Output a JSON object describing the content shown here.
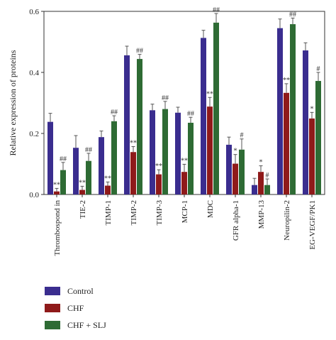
{
  "chart_data": {
    "type": "bar",
    "title": "",
    "xlabel": "",
    "ylabel": "Relative expression of proteins",
    "ylim": [
      0,
      0.6
    ],
    "yticks": [
      "0.0",
      "0.2",
      "0.4",
      "0.6"
    ],
    "categories": [
      "Thrombospond in",
      "TIE-2",
      "TIMP-1",
      "TIMP-2",
      "TIMP-3",
      "MCP-1",
      "MDC",
      "GFR alpha-1",
      "MMP-13",
      "Neuropilin-2",
      "EG-VEGF/PK1"
    ],
    "series": [
      {
        "name": "Control",
        "color": "#3a2d8f",
        "values": [
          0.238,
          0.153,
          0.188,
          0.456,
          0.276,
          0.268,
          0.513,
          0.163,
          0.031,
          0.545,
          0.472
        ],
        "errors": [
          0.028,
          0.04,
          0.02,
          0.03,
          0.02,
          0.018,
          0.025,
          0.025,
          0.022,
          0.03,
          0.025
        ]
      },
      {
        "name": "CHF",
        "color": "#8f1a1a",
        "values": [
          0.01,
          0.015,
          0.029,
          0.139,
          0.066,
          0.074,
          0.288,
          0.101,
          0.074,
          0.333,
          0.249
        ],
        "errors": [
          0.01,
          0.012,
          0.012,
          0.018,
          0.015,
          0.025,
          0.03,
          0.03,
          0.02,
          0.03,
          0.02
        ],
        "significance": [
          "**",
          "**",
          "**",
          "**",
          "**",
          "**",
          "**",
          "*",
          "*",
          "**",
          "*"
        ]
      },
      {
        "name": "CHF + SLJ",
        "color": "#2e6b34",
        "values": [
          0.08,
          0.11,
          0.24,
          0.444,
          0.28,
          0.235,
          0.563,
          0.147,
          0.031,
          0.558,
          0.372
        ],
        "errors": [
          0.025,
          0.025,
          0.018,
          0.015,
          0.025,
          0.018,
          0.03,
          0.035,
          0.02,
          0.02,
          0.028
        ],
        "significance": [
          "##",
          "##",
          "##",
          "##",
          "##",
          "##",
          "##",
          "#",
          "#",
          "##",
          "#"
        ]
      }
    ],
    "grid": false,
    "legend_position": "bottom-left"
  }
}
